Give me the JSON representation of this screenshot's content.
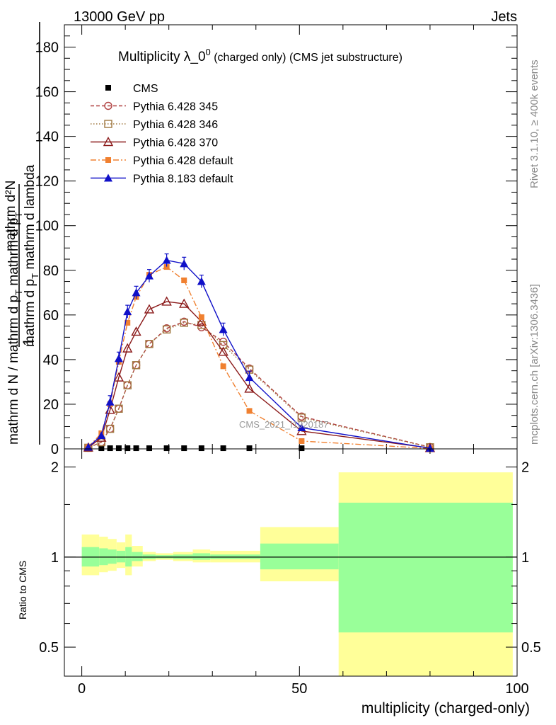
{
  "header": {
    "left": "13000 GeV pp",
    "right": "Jets"
  },
  "side_labels": {
    "rivet": "Rivet 3.1.10, ≥ 400k events",
    "mcplots": "mcplots.cern.ch [arXiv:1306.3436]"
  },
  "watermark": "CMS_2021_I1920187",
  "chart_data": [
    {
      "type": "line",
      "title_main": "Multiplicity λ_0",
      "title_sup": "0",
      "title_tail": " (charged only) (CMS jet substructure)",
      "ylabel": "1 / mathrm d N / mathrm d p_T mathrm d p_T mathrm d lambda mathrm d^2N",
      "ylabel_parts": {
        "numerator": "mathrm d²N",
        "den_a": "mathrm d p",
        "den_a_sub": "T",
        "den_b": " mathrm d lambda",
        "one": "1",
        "frac2_num": "mathrm d N / mathrm d p",
        "frac2_sub": "T",
        "frac2_tail": " mathrm d p",
        "frac2_sub2": "T"
      },
      "xlim": [
        -4,
        100
      ],
      "ylim": [
        0,
        190
      ],
      "yticks": [
        "0",
        "20",
        "40",
        "60",
        "80",
        "100",
        "120",
        "140",
        "160",
        "180"
      ],
      "ytick_values": [
        0,
        20,
        40,
        60,
        80,
        100,
        120,
        140,
        160,
        180
      ],
      "series": [
        {
          "name": "CMS",
          "color": "#000000",
          "marker": "square-filled",
          "line": "none",
          "x": [
            1.5,
            4.5,
            6.5,
            8.5,
            10.5,
            12.5,
            15.5,
            19.5,
            23.5,
            27.5,
            32.5,
            38.5,
            50.5,
            80
          ],
          "y": [
            0.3,
            0.3,
            0.3,
            0.3,
            0.3,
            0.3,
            0.3,
            0.3,
            0.3,
            0.3,
            0.3,
            0.3,
            0.3,
            0.1
          ]
        },
        {
          "name": "Pythia 6.428 345",
          "color": "#b04040",
          "marker": "circle-open",
          "line": "dashed",
          "x": [
            1.5,
            4.5,
            6.5,
            8.5,
            10.5,
            12.5,
            15.5,
            19.5,
            23.5,
            27.5,
            32.5,
            38.5,
            50.5,
            80
          ],
          "y": [
            0.5,
            3,
            9,
            18,
            28.5,
            37.5,
            47,
            54,
            57,
            54.5,
            48,
            36,
            14.5,
            0.8
          ]
        },
        {
          "name": "Pythia 6.428 346",
          "color": "#a07840",
          "marker": "square-open",
          "line": "dotted",
          "x": [
            1.5,
            4.5,
            6.5,
            8.5,
            10.5,
            12.5,
            15.5,
            19.5,
            23.5,
            27.5,
            32.5,
            38.5,
            50.5,
            80
          ],
          "y": [
            0.5,
            3,
            9,
            18,
            28.5,
            37.5,
            47,
            53.5,
            56.5,
            55.5,
            46.5,
            35.5,
            14,
            0.7
          ]
        },
        {
          "name": "Pythia 6.428 370",
          "color": "#8b1a1a",
          "marker": "triangle-open",
          "line": "solid",
          "x": [
            1.5,
            4.5,
            6.5,
            8.5,
            10.5,
            12.5,
            15.5,
            19.5,
            23.5,
            27.5,
            32.5,
            38.5,
            50.5,
            80
          ],
          "y": [
            0.6,
            5,
            17.5,
            32,
            45,
            52.5,
            62.5,
            66,
            65,
            57,
            43.5,
            27,
            8,
            0.4
          ]
        },
        {
          "name": "Pythia 6.428 default",
          "color": "#f08030",
          "marker": "square-filled",
          "line": "dashdot",
          "x": [
            1.5,
            4.5,
            6.5,
            8.5,
            10.5,
            12.5,
            15.5,
            19.5,
            23.5,
            27.5,
            32.5,
            38.5,
            50.5,
            80
          ],
          "y": [
            0.8,
            7,
            20,
            39,
            56.5,
            68,
            78,
            81.5,
            75.5,
            59,
            37,
            17,
            3.5,
            0.2
          ]
        },
        {
          "name": "Pythia 8.183 default",
          "color": "#1010c8",
          "marker": "triangle-filled",
          "line": "solid",
          "x": [
            1.5,
            4.5,
            6.5,
            8.5,
            10.5,
            12.5,
            15.5,
            19.5,
            23.5,
            27.5,
            32.5,
            38.5,
            50.5,
            80
          ],
          "y": [
            0.8,
            6,
            21,
            40.5,
            61.5,
            70,
            77.5,
            84.5,
            83,
            75,
            53.5,
            32,
            9.5,
            0.3
          ]
        }
      ]
    },
    {
      "type": "area",
      "ylabel": "Ratio to CMS",
      "xlabel": "multiplicity (charged-only)",
      "xlim": [
        -4,
        100
      ],
      "ylim": [
        0.4,
        2.3
      ],
      "xticks": [
        "0",
        "50",
        "100"
      ],
      "xtick_values": [
        0,
        50,
        100
      ],
      "yticks": [
        "0.5",
        "1",
        "2"
      ],
      "ytick_values": [
        0.5,
        1,
        2
      ],
      "reference": 1,
      "bins": [
        {
          "lo": 0,
          "hi": 4,
          "inner": [
            0.93,
            1.08
          ],
          "outer": [
            0.87,
            1.19
          ]
        },
        {
          "lo": 4,
          "hi": 6,
          "inner": [
            0.94,
            1.07
          ],
          "outer": [
            0.89,
            1.17
          ]
        },
        {
          "lo": 6,
          "hi": 8,
          "inner": [
            0.95,
            1.06
          ],
          "outer": [
            0.9,
            1.15
          ]
        },
        {
          "lo": 8,
          "hi": 10,
          "inner": [
            0.96,
            1.05
          ],
          "outer": [
            0.92,
            1.12
          ]
        },
        {
          "lo": 10,
          "hi": 11.5,
          "inner": [
            0.93,
            1.08
          ],
          "outer": [
            0.87,
            1.19
          ]
        },
        {
          "lo": 11.5,
          "hi": 14,
          "inner": [
            0.97,
            1.04
          ],
          "outer": [
            0.93,
            1.09
          ]
        },
        {
          "lo": 14,
          "hi": 17,
          "inner": [
            0.985,
            1.02
          ],
          "outer": [
            0.97,
            1.04
          ]
        },
        {
          "lo": 17,
          "hi": 21,
          "inner": [
            0.99,
            1.015
          ],
          "outer": [
            0.98,
            1.03
          ]
        },
        {
          "lo": 21,
          "hi": 25.5,
          "inner": [
            0.985,
            1.02
          ],
          "outer": [
            0.97,
            1.04
          ]
        },
        {
          "lo": 25.5,
          "hi": 29.5,
          "inner": [
            0.98,
            1.03
          ],
          "outer": [
            0.96,
            1.06
          ]
        },
        {
          "lo": 29.5,
          "hi": 41,
          "inner": [
            0.985,
            1.02
          ],
          "outer": [
            0.96,
            1.05
          ]
        },
        {
          "lo": 41,
          "hi": 59,
          "inner": [
            0.91,
            1.11
          ],
          "outer": [
            0.83,
            1.26
          ]
        },
        {
          "lo": 59,
          "hi": 99,
          "inner": [
            0.56,
            1.52
          ],
          "outer": [
            0.4,
            1.92
          ]
        }
      ],
      "colors": {
        "inner": "#99ff99",
        "outer": "#ffff99"
      }
    }
  ]
}
